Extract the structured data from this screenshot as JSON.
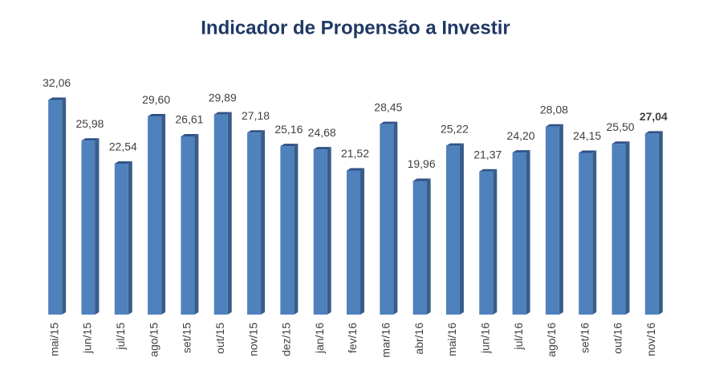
{
  "chart_data": {
    "type": "bar",
    "title": "Indicador de Propensão a Investir",
    "categories": [
      "mai/15",
      "jun/15",
      "jul/15",
      "ago/15",
      "set/15",
      "out/15",
      "nov/15",
      "dez/15",
      "jan/16",
      "fev/16",
      "mar/16",
      "abr/16",
      "mai/16",
      "jun/16",
      "jul/16",
      "ago/16",
      "set/16",
      "out/16",
      "nov/16"
    ],
    "values": [
      32.06,
      25.98,
      22.54,
      29.6,
      26.61,
      29.89,
      27.18,
      25.16,
      24.68,
      21.52,
      28.45,
      19.96,
      25.22,
      21.37,
      24.2,
      28.08,
      24.15,
      25.5,
      27.04
    ],
    "value_labels": [
      "32,06",
      "25,98",
      "22,54",
      "29,60",
      "26,61",
      "29,89",
      "27,18",
      "25,16",
      "24,68",
      "21,52",
      "28,45",
      "19,96",
      "25,22",
      "21,37",
      "24,20",
      "28,08",
      "24,15",
      "25,50",
      "27,04"
    ],
    "color": "#4f81bd",
    "ylim": [
      0,
      35
    ]
  }
}
